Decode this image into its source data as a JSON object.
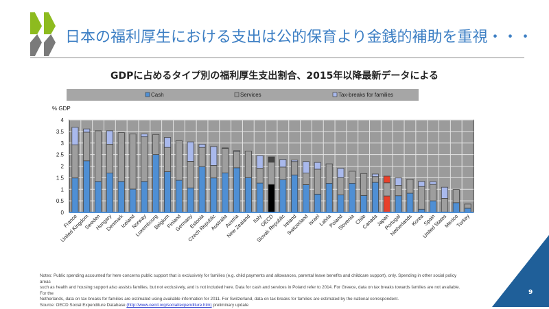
{
  "slide": {
    "title": "日本の福利厚生における支出は公的保育より金銭的補助を重視・・・",
    "subtitle": "GDPに占めるタイプ別の福利厚生支出割合、2015年以降最新データによる",
    "notes": [
      "Notes: Public spending accounted for here concerns public support that is exclusively for families (e.g. child payments and allowances, parental leave benefits and childcare support), only. Spending in other social policy areas",
      "such as health and housing support also assists families, but not exclusively, and is not included here. Data for cash and services in Poland refer to 2014. For Greece, data on tax breaks towards families are not available. For the",
      "Netherlands, data on tax breaks for families are estimated using available information for 2011. For Switzerland, data on tax breaks for families are estimated by the national  correspondent."
    ],
    "source_prefix": "Source: OECD Social Expenditure Database ",
    "source_link": "(http://www.oecd.org/social/expenditure.htm)",
    "source_suffix": " preliminary update",
    "page_number": "9",
    "colors": {
      "title": "#3d7fc4",
      "accent_triangle": "#1f5f99",
      "logo_green": "#8dbb1f",
      "logo_gray": "#7a7a7a"
    }
  },
  "chart_data": {
    "type": "bar",
    "stacked": true,
    "ylabel": "% GDP",
    "ylim": [
      0,
      4
    ],
    "yticks": [
      "0",
      "0.5",
      "1",
      "1.5",
      "2",
      "2.5",
      "3",
      "3.5",
      "4"
    ],
    "grid": true,
    "legend": "top",
    "categories": [
      "France",
      "United Kingdom",
      "Sweden",
      "Hungary",
      "Denmark",
      "Iceland",
      "Norway",
      "Luxembourg",
      "Belgium",
      "Finland",
      "Germany",
      "Estonia",
      "Czech Republic",
      "Australia",
      "Austria",
      "New Zealand",
      "Italy",
      "OECD",
      "Slovak Republic",
      "Ireland",
      "Switzerland",
      "Israel",
      "Latvia",
      "Poland",
      "Slovenia",
      "Chile",
      "Canada",
      "Japan",
      "Portugal",
      "Netherlands",
      "Korea",
      "Spain",
      "United States",
      "Mexico",
      "Turkey"
    ],
    "series": [
      {
        "name": "Cash",
        "color": "#4f8fd4",
        "values": [
          1.49,
          2.23,
          1.34,
          1.7,
          1.34,
          1.01,
          1.34,
          2.5,
          1.76,
          1.39,
          1.06,
          1.98,
          1.49,
          1.71,
          1.93,
          1.5,
          1.27,
          1.21,
          1.42,
          1.62,
          1.2,
          0.79,
          1.26,
          0.76,
          1.26,
          0.73,
          1.3,
          0.71,
          0.72,
          0.83,
          0.14,
          0.5,
          0.02,
          0.42,
          0.18
        ]
      },
      {
        "name": "Services",
        "color": "#9e9e9e",
        "values": [
          1.43,
          1.24,
          2.19,
          1.25,
          2.11,
          2.38,
          1.93,
          0.87,
          1.05,
          1.71,
          1.15,
          0.83,
          0.54,
          1.06,
          0.71,
          1.15,
          0.64,
          0.96,
          0.54,
          0.58,
          0.5,
          1.08,
          0.84,
          0.74,
          0.52,
          0.95,
          0.25,
          0.57,
          0.45,
          0.61,
          0.98,
          0.71,
          0.59,
          0.57,
          0.18
        ]
      },
      {
        "name": "Tax-breaks for families",
        "color": "#a9b9ec",
        "values": [
          0.76,
          0.14,
          0.0,
          0.58,
          0.0,
          0.0,
          0.12,
          0.0,
          0.43,
          0.0,
          0.84,
          0.14,
          0.82,
          0.02,
          0.03,
          0.0,
          0.55,
          0.23,
          0.33,
          0.06,
          0.5,
          0.29,
          0.0,
          0.41,
          0.0,
          0.0,
          0.11,
          0.29,
          0.32,
          0.0,
          0.22,
          0.12,
          0.48,
          0.0,
          0.0
        ]
      }
    ],
    "highlight": {
      "OECD": "#000000",
      "Japan": "#e8402a"
    }
  }
}
